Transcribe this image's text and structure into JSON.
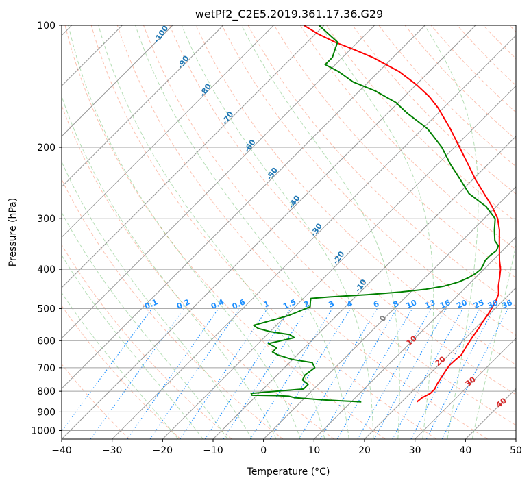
{
  "chart_data": {
    "type": "skew-t",
    "title": "wetPf2_C2E5.2019.361.17.36.G29",
    "xlabel": "Temperature (°C)",
    "ylabel": "Pressure (hPa)",
    "xlim": [
      -40,
      50
    ],
    "ylim": [
      1050,
      100
    ],
    "x_ticks": [
      "−40",
      "−30",
      "−20",
      "−10",
      "0",
      "10",
      "20",
      "30",
      "40",
      "50"
    ],
    "y_ticks": [
      "100",
      "200",
      "300",
      "400",
      "500",
      "600",
      "700",
      "800",
      "900",
      "1000"
    ],
    "grid": true,
    "series": [
      {
        "color": "#ff0000",
        "points": [
          [
            850,
            23.0
          ],
          [
            830,
            23.2
          ],
          [
            810,
            24.0
          ],
          [
            790,
            24.0
          ],
          [
            770,
            23.5
          ],
          [
            740,
            23.0
          ],
          [
            710,
            22.5
          ],
          [
            690,
            22.2
          ],
          [
            670,
            22.3
          ],
          [
            650,
            22.5
          ],
          [
            620,
            21.8
          ],
          [
            590,
            21.2
          ],
          [
            560,
            20.7
          ],
          [
            540,
            20.2
          ],
          [
            510,
            19.6
          ],
          [
            480,
            18.7
          ],
          [
            460,
            17.8
          ],
          [
            440,
            16.2
          ],
          [
            420,
            14.8
          ],
          [
            400,
            13.3
          ],
          [
            380,
            11.3
          ],
          [
            360,
            9.4
          ],
          [
            340,
            7.4
          ],
          [
            320,
            5.3
          ],
          [
            300,
            2.7
          ],
          [
            280,
            -0.8
          ],
          [
            260,
            -5.0
          ],
          [
            240,
            -9.5
          ],
          [
            220,
            -14.0
          ],
          [
            200,
            -19.0
          ],
          [
            180,
            -24.5
          ],
          [
            160,
            -31.0
          ],
          [
            150,
            -35.0
          ],
          [
            140,
            -40.0
          ],
          [
            130,
            -46.0
          ],
          [
            120,
            -54.0
          ],
          [
            115,
            -59.0
          ],
          [
            110,
            -64.5
          ],
          [
            105,
            -69.5
          ],
          [
            100,
            -74.0
          ]
        ]
      },
      {
        "color": "#008000",
        "points": [
          [
            850,
            12.0
          ],
          [
            845,
            8.0
          ],
          [
            840,
            4.0
          ],
          [
            835,
            1.0
          ],
          [
            830,
            -2.0
          ],
          [
            823,
            -3.5
          ],
          [
            820,
            -6.0
          ],
          [
            818,
            -11.0
          ],
          [
            810,
            -11.5
          ],
          [
            800,
            -7.0
          ],
          [
            790,
            -2.0
          ],
          [
            770,
            -2.0
          ],
          [
            750,
            -4.0
          ],
          [
            730,
            -4.5
          ],
          [
            700,
            -4.0
          ],
          [
            680,
            -5.5
          ],
          [
            668,
            -10.0
          ],
          [
            650,
            -14.0
          ],
          [
            640,
            -15.5
          ],
          [
            625,
            -15.5
          ],
          [
            610,
            -18.0
          ],
          [
            600,
            -16.0
          ],
          [
            590,
            -14.0
          ],
          [
            580,
            -15.5
          ],
          [
            570,
            -20.0
          ],
          [
            560,
            -23.0
          ],
          [
            550,
            -24.5
          ],
          [
            535,
            -22.0
          ],
          [
            520,
            -19.5
          ],
          [
            505,
            -18.0
          ],
          [
            495,
            -17.0
          ],
          [
            480,
            -18.0
          ],
          [
            472,
            -18.5
          ],
          [
            468,
            -15.0
          ],
          [
            462,
            -8.0
          ],
          [
            455,
            -2.0
          ],
          [
            448,
            2.5
          ],
          [
            440,
            5.5
          ],
          [
            430,
            7.5
          ],
          [
            420,
            8.6
          ],
          [
            410,
            9.2
          ],
          [
            400,
            9.4
          ],
          [
            390,
            9.0
          ],
          [
            380,
            8.5
          ],
          [
            370,
            8.5
          ],
          [
            360,
            8.8
          ],
          [
            350,
            8.2
          ],
          [
            340,
            6.5
          ],
          [
            320,
            4.3
          ],
          [
            300,
            2.2
          ],
          [
            280,
            -2.0
          ],
          [
            260,
            -8.0
          ],
          [
            240,
            -12.5
          ],
          [
            220,
            -17.5
          ],
          [
            200,
            -22.5
          ],
          [
            180,
            -29.0
          ],
          [
            165,
            -36.0
          ],
          [
            155,
            -40.5
          ],
          [
            145,
            -47.0
          ],
          [
            138,
            -53.0
          ],
          [
            130,
            -58.0
          ],
          [
            125,
            -62.0
          ],
          [
            120,
            -62.0
          ],
          [
            115,
            -63.0
          ],
          [
            110,
            -64.0
          ],
          [
            100,
            -71.0
          ]
        ]
      }
    ],
    "dry_adiabat_labels": [
      "-100",
      "-90",
      "-80",
      "-70",
      "-60",
      "-50",
      "-40",
      "-30",
      "-20",
      "-10",
      "0"
    ],
    "moist_adiabat_labels": [
      "10",
      "20",
      "30",
      "40"
    ],
    "mixing_ratio_labels": [
      "0.1",
      "0.2",
      "0.4",
      "0.6",
      "1",
      "1.5",
      "2",
      "3",
      "4",
      "6",
      "8",
      "10",
      "13",
      "16",
      "20",
      "25",
      "30",
      "36"
    ]
  }
}
